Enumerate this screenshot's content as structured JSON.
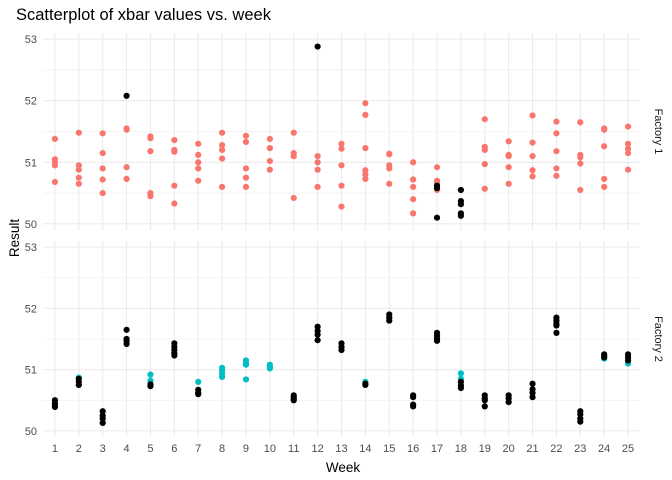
{
  "chart_data": {
    "type": "scatter",
    "title": "Scatterplot of xbar values vs. week",
    "xlabel": "Week",
    "ylabel": "Result",
    "x_ticks": [
      1,
      2,
      3,
      4,
      5,
      6,
      7,
      8,
      9,
      10,
      11,
      12,
      13,
      14,
      15,
      16,
      17,
      18,
      19,
      20,
      21,
      22,
      23,
      24,
      25
    ],
    "y_ticks": [
      50,
      51,
      52,
      53
    ],
    "xlim": [
      0.5,
      25.5
    ],
    "ylim": [
      49.9,
      53.1
    ],
    "grid": true,
    "colors": {
      "factory1": "#F8766D",
      "factory2": "#00BFC4",
      "flagged": "#000000",
      "grid": "#ebebeb"
    },
    "facets": [
      {
        "label": "Factory 1",
        "color": "#F8766D",
        "points": [
          [
            1,
            51.38
          ],
          [
            1,
            51.05
          ],
          [
            1,
            51.0
          ],
          [
            1,
            50.95
          ],
          [
            1,
            50.68
          ],
          [
            2,
            51.48
          ],
          [
            2,
            50.95
          ],
          [
            2,
            50.88
          ],
          [
            2,
            50.75
          ],
          [
            2,
            50.65
          ],
          [
            3,
            51.47
          ],
          [
            3,
            51.15
          ],
          [
            3,
            50.9
          ],
          [
            3,
            50.72
          ],
          [
            3,
            50.5
          ],
          [
            4,
            51.55
          ],
          [
            4,
            51.53
          ],
          [
            4,
            50.92
          ],
          [
            4,
            50.73
          ],
          [
            5,
            51.42
          ],
          [
            5,
            51.39
          ],
          [
            5,
            51.18
          ],
          [
            5,
            50.5
          ],
          [
            5,
            50.45
          ],
          [
            6,
            51.36
          ],
          [
            6,
            51.2
          ],
          [
            6,
            51.17
          ],
          [
            6,
            50.62
          ],
          [
            6,
            50.33
          ],
          [
            7,
            51.3
          ],
          [
            7,
            51.12
          ],
          [
            7,
            51.0
          ],
          [
            7,
            50.9
          ],
          [
            7,
            50.7
          ],
          [
            8,
            51.48
          ],
          [
            8,
            51.28
          ],
          [
            8,
            51.2
          ],
          [
            8,
            51.06
          ],
          [
            8,
            50.6
          ],
          [
            9,
            51.43
          ],
          [
            9,
            51.33
          ],
          [
            9,
            50.9
          ],
          [
            9,
            50.75
          ],
          [
            9,
            50.6
          ],
          [
            10,
            51.38
          ],
          [
            10,
            51.23
          ],
          [
            10,
            51.02
          ],
          [
            10,
            50.88
          ],
          [
            11,
            51.48
          ],
          [
            11,
            51.15
          ],
          [
            11,
            51.1
          ],
          [
            11,
            50.42
          ],
          [
            12,
            51.1
          ],
          [
            12,
            51.0
          ],
          [
            12,
            50.88
          ],
          [
            12,
            50.6
          ],
          [
            13,
            51.3
          ],
          [
            13,
            51.22
          ],
          [
            13,
            50.95
          ],
          [
            13,
            50.62
          ],
          [
            13,
            50.28
          ],
          [
            14,
            51.96
          ],
          [
            14,
            51.77
          ],
          [
            14,
            51.23
          ],
          [
            14,
            50.87
          ],
          [
            14,
            50.8
          ],
          [
            14,
            50.73
          ],
          [
            15,
            51.14
          ],
          [
            15,
            51.13
          ],
          [
            15,
            50.95
          ],
          [
            15,
            50.9
          ],
          [
            15,
            50.65
          ],
          [
            16,
            51.0
          ],
          [
            16,
            50.72
          ],
          [
            16,
            50.6
          ],
          [
            16,
            50.4
          ],
          [
            16,
            50.17
          ],
          [
            17,
            50.92
          ],
          [
            17,
            50.7
          ],
          [
            17,
            50.66
          ],
          [
            17,
            50.55
          ],
          [
            19,
            51.7
          ],
          [
            19,
            51.25
          ],
          [
            19,
            51.2
          ],
          [
            19,
            50.97
          ],
          [
            19,
            50.57
          ],
          [
            20,
            51.34
          ],
          [
            20,
            51.12
          ],
          [
            20,
            51.1
          ],
          [
            20,
            50.92
          ],
          [
            20,
            50.65
          ],
          [
            21,
            51.76
          ],
          [
            21,
            51.32
          ],
          [
            21,
            51.1
          ],
          [
            21,
            50.87
          ],
          [
            21,
            50.77
          ],
          [
            22,
            51.66
          ],
          [
            22,
            51.47
          ],
          [
            22,
            51.18
          ],
          [
            22,
            50.9
          ],
          [
            22,
            50.78
          ],
          [
            23,
            51.65
          ],
          [
            23,
            51.12
          ],
          [
            23,
            51.08
          ],
          [
            23,
            50.98
          ],
          [
            23,
            50.55
          ],
          [
            24,
            51.55
          ],
          [
            24,
            51.53
          ],
          [
            24,
            51.26
          ],
          [
            24,
            50.73
          ],
          [
            24,
            50.6
          ],
          [
            25,
            51.58
          ],
          [
            25,
            51.3
          ],
          [
            25,
            51.22
          ],
          [
            25,
            51.15
          ],
          [
            25,
            50.88
          ]
        ],
        "flagged": [
          [
            4,
            52.08
          ],
          [
            12,
            52.88
          ],
          [
            17,
            50.62
          ],
          [
            17,
            50.58
          ],
          [
            17,
            50.1
          ],
          [
            18,
            50.55
          ],
          [
            18,
            50.37
          ],
          [
            18,
            50.32
          ],
          [
            18,
            50.17
          ],
          [
            18,
            50.13
          ]
        ]
      },
      {
        "label": "Factory 2",
        "color": "#00BFC4",
        "points": [
          [
            2,
            50.87
          ],
          [
            5,
            50.92
          ],
          [
            5,
            50.82
          ],
          [
            7,
            50.8
          ],
          [
            8,
            51.03
          ],
          [
            8,
            50.98
          ],
          [
            8,
            50.93
          ],
          [
            8,
            50.88
          ],
          [
            9,
            51.15
          ],
          [
            9,
            51.1
          ],
          [
            9,
            51.08
          ],
          [
            9,
            50.84
          ],
          [
            10,
            51.08
          ],
          [
            10,
            51.04
          ],
          [
            10,
            51.02
          ],
          [
            14,
            50.8
          ],
          [
            18,
            50.94
          ],
          [
            18,
            50.85
          ],
          [
            24,
            51.18
          ],
          [
            25,
            51.1
          ]
        ],
        "flagged": [
          [
            1,
            50.5
          ],
          [
            1,
            50.45
          ],
          [
            1,
            50.43
          ],
          [
            1,
            50.39
          ],
          [
            2,
            50.85
          ],
          [
            2,
            50.8
          ],
          [
            2,
            50.75
          ],
          [
            3,
            50.32
          ],
          [
            3,
            50.25
          ],
          [
            3,
            50.2
          ],
          [
            3,
            50.13
          ],
          [
            4,
            51.65
          ],
          [
            4,
            51.5
          ],
          [
            4,
            51.47
          ],
          [
            4,
            51.42
          ],
          [
            5,
            50.76
          ],
          [
            5,
            50.73
          ],
          [
            6,
            51.43
          ],
          [
            6,
            51.37
          ],
          [
            6,
            51.32
          ],
          [
            6,
            51.27
          ],
          [
            6,
            51.23
          ],
          [
            7,
            50.67
          ],
          [
            7,
            50.62
          ],
          [
            7,
            50.6
          ],
          [
            11,
            50.58
          ],
          [
            11,
            50.55
          ],
          [
            11,
            50.52
          ],
          [
            11,
            50.5
          ],
          [
            12,
            51.7
          ],
          [
            12,
            51.63
          ],
          [
            12,
            51.57
          ],
          [
            12,
            51.48
          ],
          [
            13,
            51.43
          ],
          [
            13,
            51.37
          ],
          [
            13,
            51.32
          ],
          [
            14,
            50.77
          ],
          [
            14,
            50.75
          ],
          [
            15,
            51.9
          ],
          [
            15,
            51.85
          ],
          [
            15,
            51.8
          ],
          [
            16,
            50.58
          ],
          [
            16,
            50.55
          ],
          [
            16,
            50.43
          ],
          [
            16,
            50.4
          ],
          [
            17,
            51.6
          ],
          [
            17,
            51.55
          ],
          [
            17,
            51.5
          ],
          [
            17,
            51.47
          ],
          [
            18,
            50.8
          ],
          [
            18,
            50.74
          ],
          [
            18,
            50.7
          ],
          [
            19,
            50.58
          ],
          [
            19,
            50.53
          ],
          [
            19,
            50.5
          ],
          [
            19,
            50.4
          ],
          [
            20,
            50.58
          ],
          [
            20,
            50.53
          ],
          [
            20,
            50.47
          ],
          [
            21,
            50.77
          ],
          [
            21,
            50.68
          ],
          [
            21,
            50.62
          ],
          [
            21,
            50.55
          ],
          [
            22,
            51.85
          ],
          [
            22,
            51.8
          ],
          [
            22,
            51.75
          ],
          [
            22,
            51.72
          ],
          [
            22,
            51.6
          ],
          [
            23,
            50.32
          ],
          [
            23,
            50.27
          ],
          [
            23,
            50.2
          ],
          [
            23,
            50.15
          ],
          [
            24,
            51.25
          ],
          [
            24,
            51.22
          ],
          [
            24,
            51.2
          ],
          [
            25,
            51.25
          ],
          [
            25,
            51.2
          ],
          [
            25,
            51.15
          ]
        ]
      }
    ]
  }
}
